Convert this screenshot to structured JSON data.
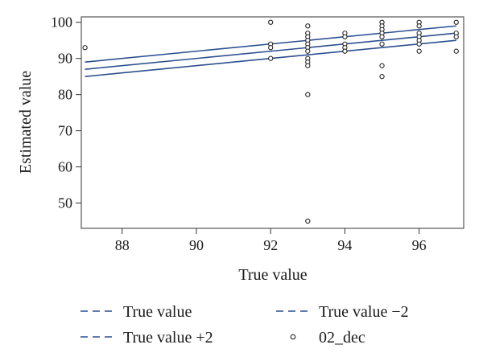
{
  "chart_data": {
    "type": "scatter",
    "title": "",
    "xlabel": "True value",
    "ylabel": "Estimated value",
    "xlim": [
      86.9,
      97.2
    ],
    "ylim": [
      43,
      101.5
    ],
    "xticks": [
      88,
      90,
      92,
      94,
      96
    ],
    "yticks": [
      50,
      60,
      70,
      80,
      90,
      100
    ],
    "grid": false,
    "legend_position": "bottom",
    "series": [
      {
        "name": "True value",
        "kind": "line",
        "style": "dashed",
        "color": "#2b4f8f",
        "x": [
          87,
          97
        ],
        "y": [
          87,
          97
        ]
      },
      {
        "name": "True value −2",
        "kind": "line",
        "style": "dashed",
        "color": "#2b4f8f",
        "x": [
          87,
          97
        ],
        "y": [
          85,
          95
        ]
      },
      {
        "name": "True value +2",
        "kind": "line",
        "style": "dashed",
        "color": "#2b4f8f",
        "x": [
          87,
          97
        ],
        "y": [
          89,
          99
        ]
      },
      {
        "name": "02_dec",
        "kind": "scatter",
        "marker": "open-circle",
        "color": "#222222",
        "points": [
          [
            87,
            93
          ],
          [
            92,
            100
          ],
          [
            92,
            94
          ],
          [
            92,
            93
          ],
          [
            92,
            90
          ],
          [
            93,
            99
          ],
          [
            93,
            97
          ],
          [
            93,
            96
          ],
          [
            93,
            95
          ],
          [
            93,
            94
          ],
          [
            93,
            93
          ],
          [
            93,
            92
          ],
          [
            93,
            90
          ],
          [
            93,
            89
          ],
          [
            93,
            88
          ],
          [
            93,
            80
          ],
          [
            93,
            45
          ],
          [
            94,
            97
          ],
          [
            94,
            96
          ],
          [
            94,
            94
          ],
          [
            94,
            93
          ],
          [
            94,
            92
          ],
          [
            95,
            100
          ],
          [
            95,
            99
          ],
          [
            95,
            98
          ],
          [
            95,
            97
          ],
          [
            95,
            96
          ],
          [
            95,
            94
          ],
          [
            95,
            88
          ],
          [
            95,
            85
          ],
          [
            96,
            100
          ],
          [
            96,
            99
          ],
          [
            96,
            97
          ],
          [
            96,
            96
          ],
          [
            96,
            95
          ],
          [
            96,
            94
          ],
          [
            96,
            92
          ],
          [
            97,
            100
          ],
          [
            97,
            97
          ],
          [
            97,
            96
          ],
          [
            97,
            92
          ]
        ]
      }
    ]
  }
}
